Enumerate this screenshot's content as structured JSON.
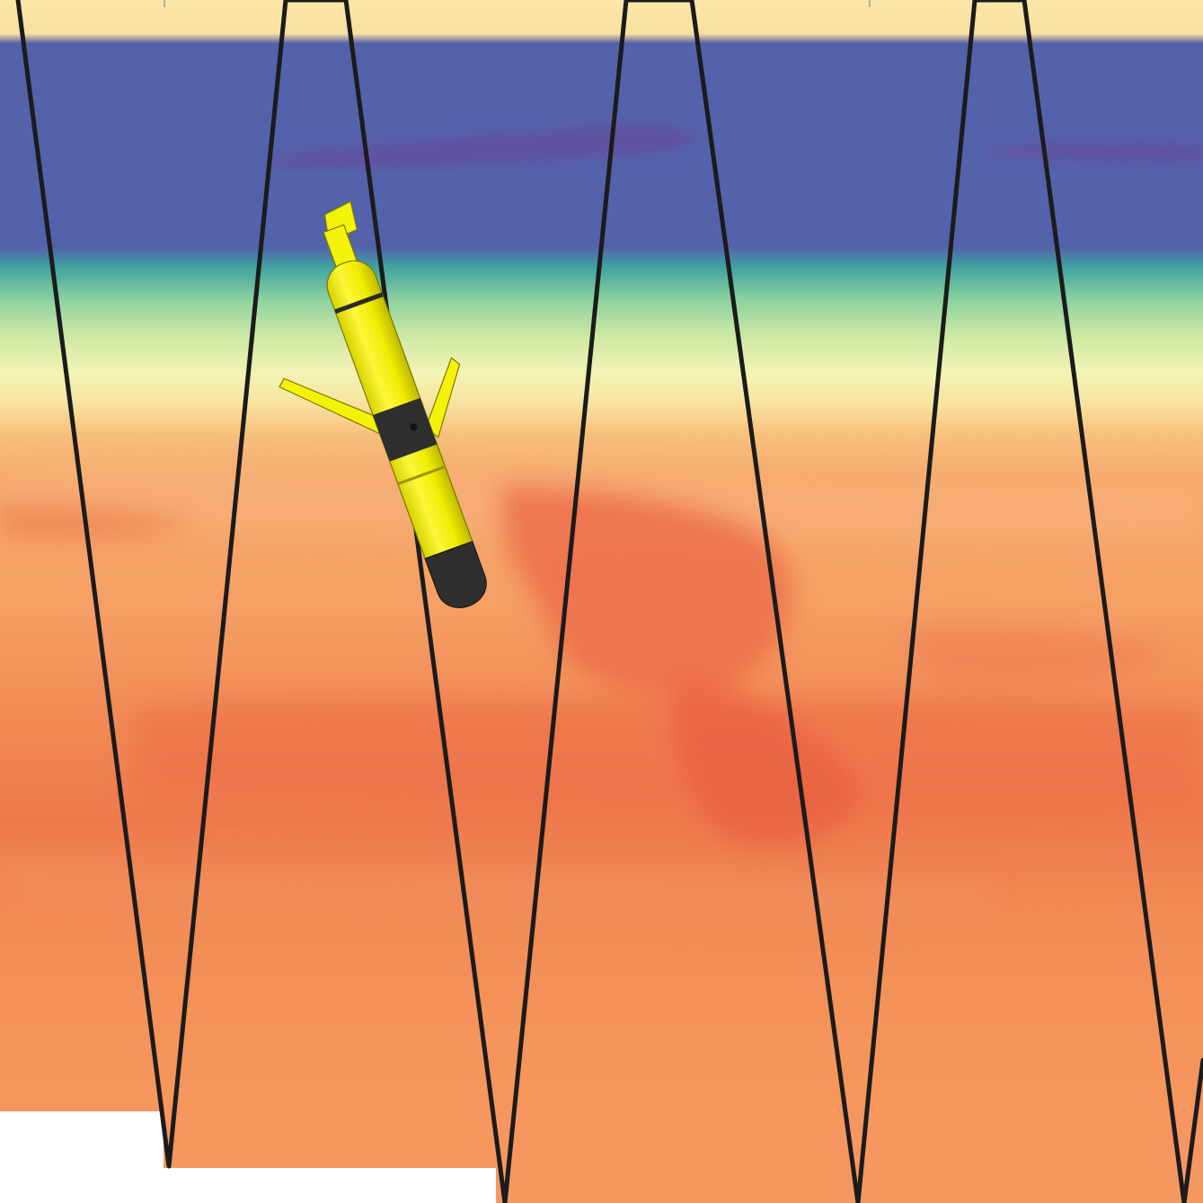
{
  "scene": {
    "kind": "ocean-section-with-glider",
    "colors": {
      "surface": "#f9e1a0",
      "cold_band": "#5461ab",
      "cold_core": "#6a4d9c",
      "thermocline_teal": "#3fa3a0",
      "thermocline_green": "#bfe5a0",
      "pale_yellow": "#f5f5b8",
      "warm_light": "#f7b070",
      "warm_mid": "#f5965a",
      "warm_dark": "#e96545",
      "track_line": "#1b1b1b",
      "glider_body": "#f5f20a",
      "glider_dark": "#2a2a2a",
      "background": "#ffffff"
    },
    "glider": {
      "icon": "underwater-glider-icon"
    },
    "track": {
      "icon": "dive-track-sawtooth"
    }
  }
}
